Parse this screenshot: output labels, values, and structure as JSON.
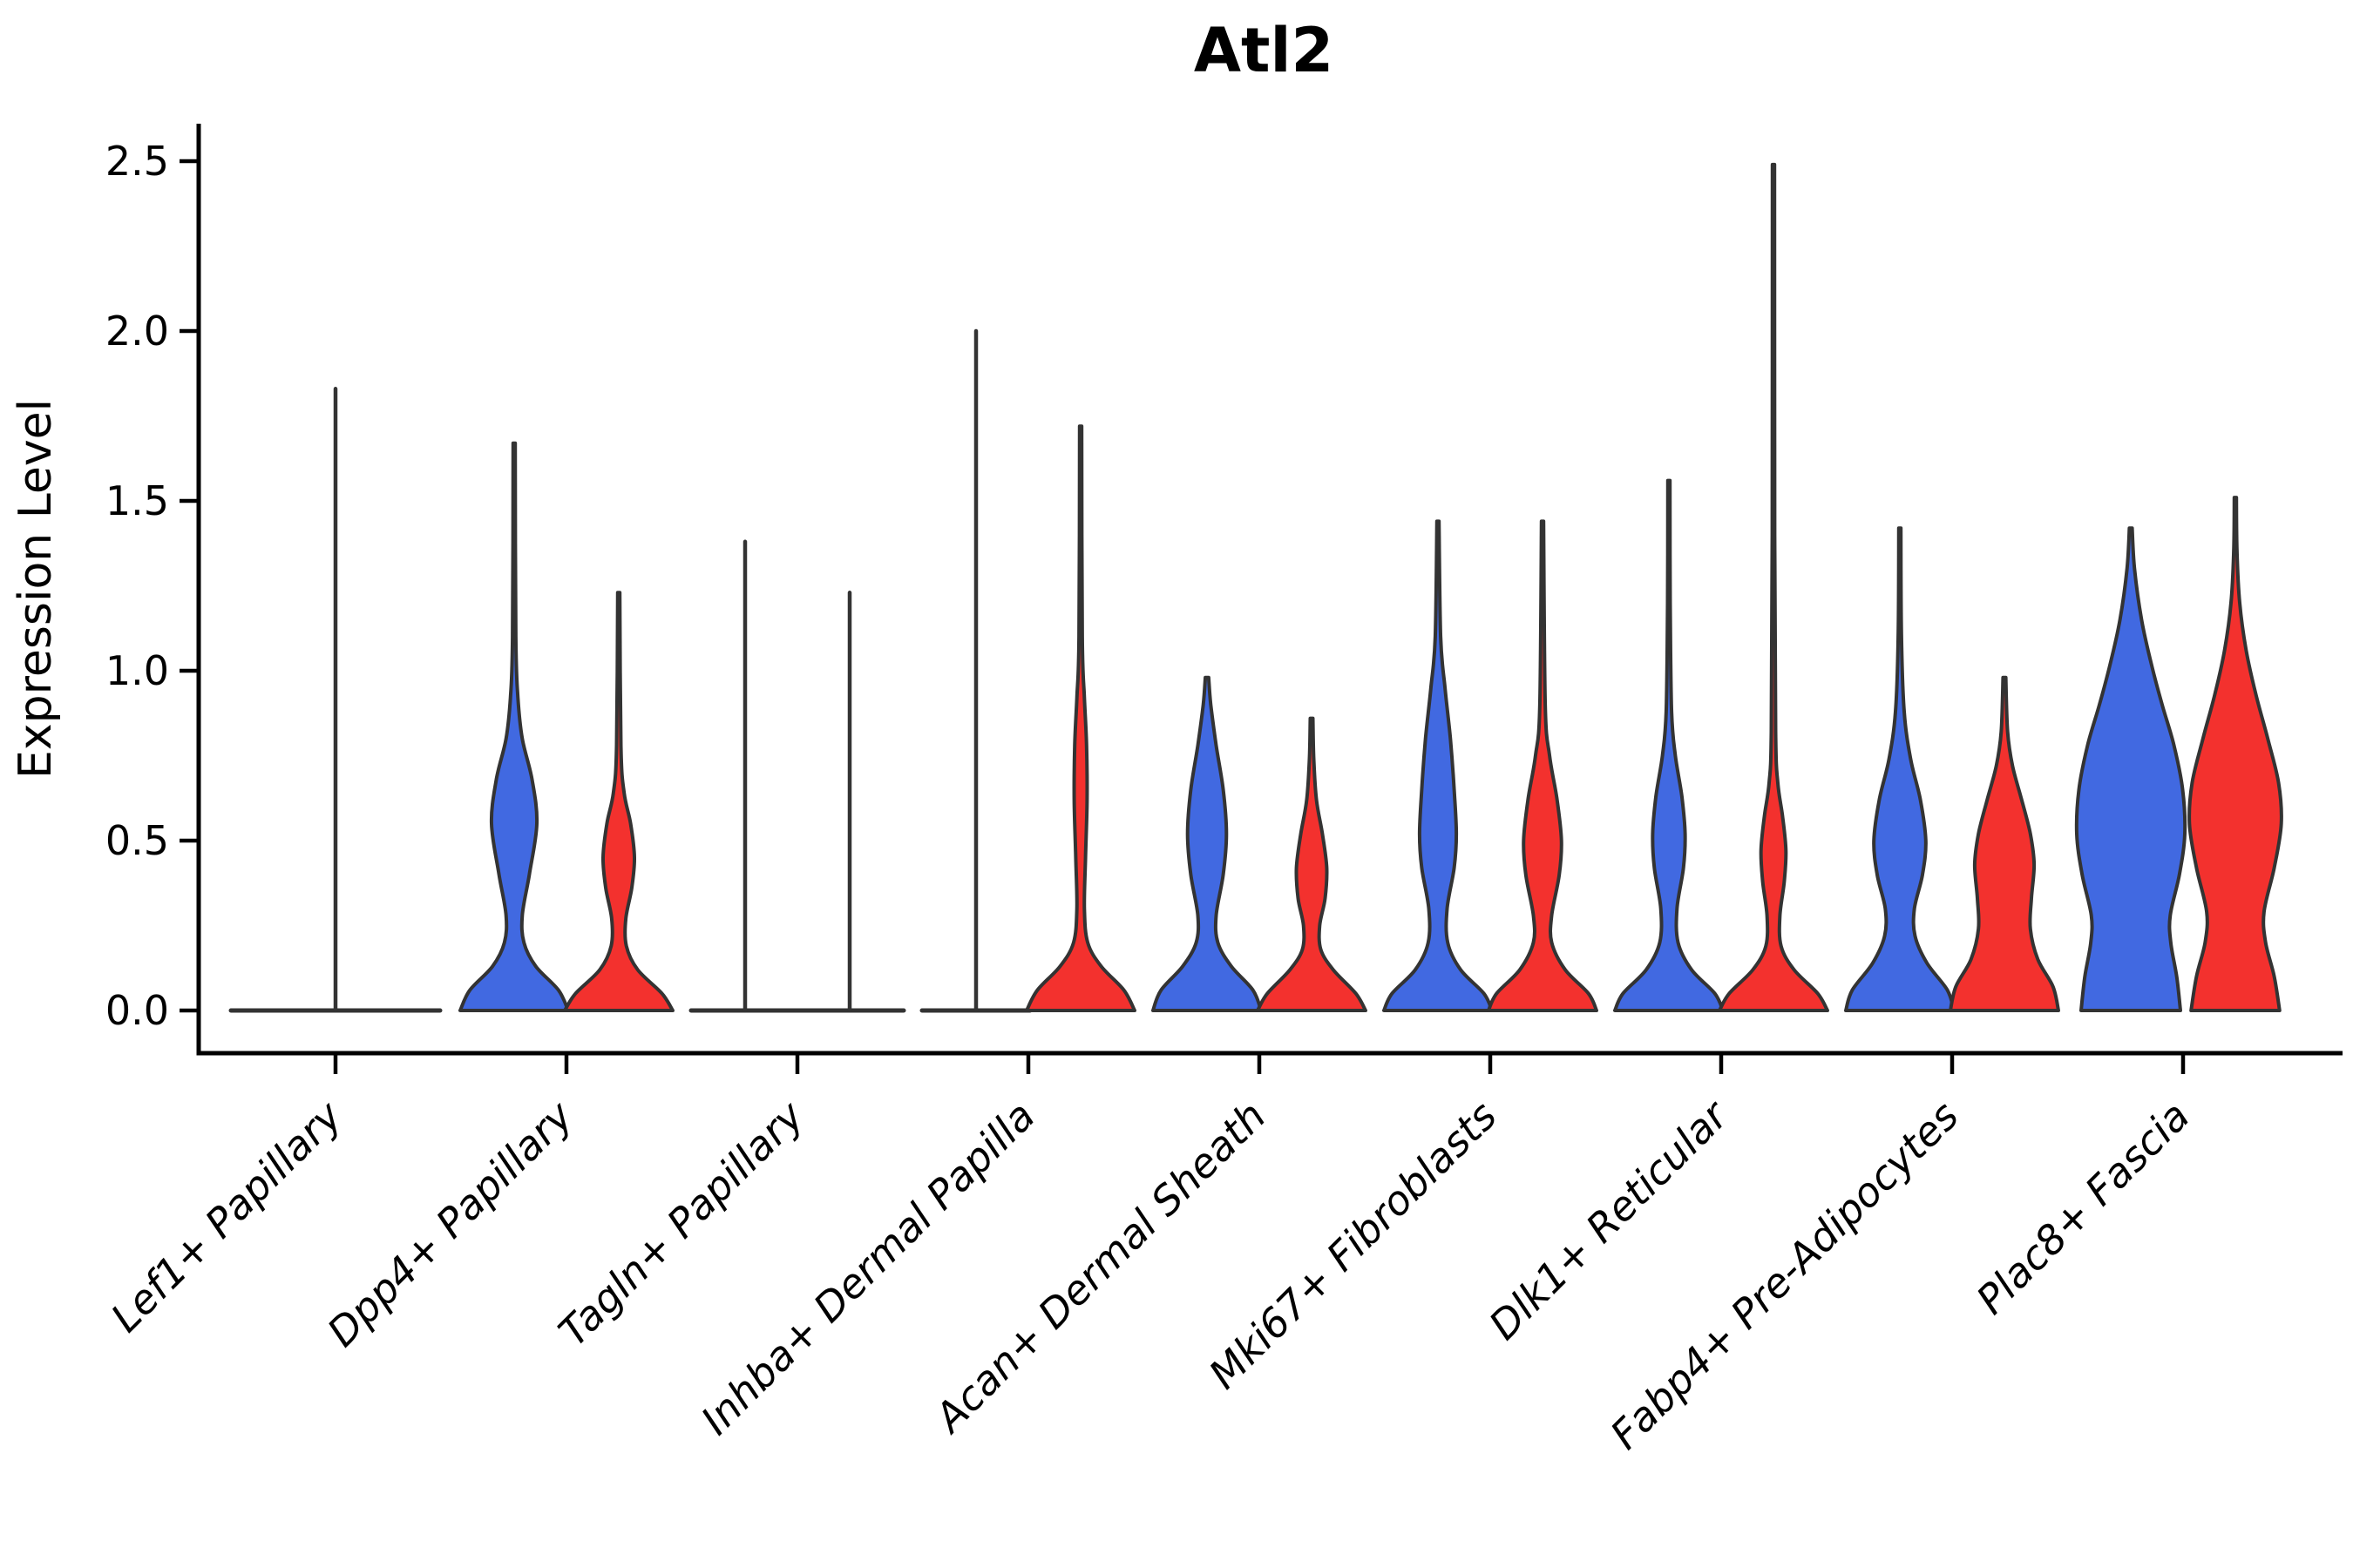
{
  "page": {
    "background": "#FFFFFF"
  },
  "chart_data": {
    "type": "violin",
    "title": "Atl2",
    "ylabel": "Expression Level",
    "xlabel": "",
    "ylim": [
      0,
      2.61
    ],
    "yticks": [
      0.0,
      0.5,
      1.0,
      1.5,
      2.0,
      2.5
    ],
    "ytick_labels": [
      "0.0",
      "0.5",
      "1.0",
      "1.5",
      "2.0",
      "2.5"
    ],
    "grid": false,
    "legend_position": "none",
    "x_label_rotation_deg": 45,
    "categories": [
      "Lef1+ Papillary",
      "Dpp4+ Papillary",
      "Tagln+ Papillary",
      "Inhba+ Dermal Papilla",
      "Acan+ Dermal Sheath",
      "Mki67+ Fibroblasts",
      "Dlk1+ Reticular",
      "Fabp4+ Pre-Adipocytes",
      "Plac8+ Fascia"
    ],
    "series": [
      {
        "name": "split-left-blue",
        "color": "#4169E1"
      },
      {
        "name": "split-right-red",
        "color": "#F3312E"
      }
    ],
    "outline_color": "#333333",
    "axis_color": "#000000",
    "violins": [
      {
        "category": 0,
        "series": null,
        "kind": "flat",
        "half_width": 120,
        "spike_top": 1.83
      },
      {
        "category": 1,
        "series": 0,
        "kind": "body",
        "spike_top": 1.67,
        "profile": [
          [
            0,
            1.0
          ],
          [
            0.06,
            0.82
          ],
          [
            0.13,
            0.4
          ],
          [
            0.2,
            0.18
          ],
          [
            0.28,
            0.15
          ],
          [
            0.4,
            0.28
          ],
          [
            0.55,
            0.42
          ],
          [
            0.68,
            0.33
          ],
          [
            0.8,
            0.15
          ],
          [
            0.92,
            0.07
          ],
          [
            1.1,
            0.03
          ],
          [
            1.67,
            0.02
          ]
        ]
      },
      {
        "category": 1,
        "series": 1,
        "kind": "body",
        "spike_top": 1.23,
        "profile": [
          [
            0,
            1.0
          ],
          [
            0.05,
            0.8
          ],
          [
            0.12,
            0.35
          ],
          [
            0.19,
            0.14
          ],
          [
            0.27,
            0.13
          ],
          [
            0.36,
            0.24
          ],
          [
            0.45,
            0.29
          ],
          [
            0.55,
            0.22
          ],
          [
            0.64,
            0.1
          ],
          [
            0.78,
            0.04
          ],
          [
            1.23,
            0.02
          ]
        ]
      },
      {
        "category": 2,
        "series": 0,
        "kind": "flat",
        "half_width": 62,
        "spike_top": 1.38
      },
      {
        "category": 2,
        "series": 1,
        "kind": "flat",
        "half_width": 62,
        "spike_top": 1.23
      },
      {
        "category": 3,
        "series": 0,
        "kind": "flat",
        "half_width": 62,
        "spike_top": 2.0
      },
      {
        "category": 3,
        "series": 1,
        "kind": "body",
        "spike_top": 1.72,
        "profile": [
          [
            0,
            1.0
          ],
          [
            0.06,
            0.8
          ],
          [
            0.13,
            0.38
          ],
          [
            0.2,
            0.13
          ],
          [
            0.3,
            0.07
          ],
          [
            0.45,
            0.09
          ],
          [
            0.62,
            0.12
          ],
          [
            0.78,
            0.11
          ],
          [
            0.92,
            0.07
          ],
          [
            1.1,
            0.03
          ],
          [
            1.72,
            0.02
          ]
        ]
      },
      {
        "category": 4,
        "series": 0,
        "kind": "body",
        "spike_top": 0.98,
        "profile": [
          [
            0,
            1.0
          ],
          [
            0.06,
            0.85
          ],
          [
            0.13,
            0.45
          ],
          [
            0.2,
            0.2
          ],
          [
            0.28,
            0.17
          ],
          [
            0.4,
            0.3
          ],
          [
            0.52,
            0.36
          ],
          [
            0.65,
            0.3
          ],
          [
            0.78,
            0.17
          ],
          [
            0.9,
            0.07
          ],
          [
            0.98,
            0.03
          ]
        ]
      },
      {
        "category": 4,
        "series": 1,
        "kind": "body",
        "spike_top": 0.86,
        "profile": [
          [
            0,
            1.0
          ],
          [
            0.05,
            0.82
          ],
          [
            0.12,
            0.4
          ],
          [
            0.18,
            0.17
          ],
          [
            0.25,
            0.15
          ],
          [
            0.33,
            0.25
          ],
          [
            0.42,
            0.28
          ],
          [
            0.52,
            0.2
          ],
          [
            0.62,
            0.09
          ],
          [
            0.74,
            0.04
          ],
          [
            0.86,
            0.025
          ]
        ]
      },
      {
        "category": 5,
        "series": 0,
        "kind": "body",
        "spike_top": 1.44,
        "profile": [
          [
            0,
            1.0
          ],
          [
            0.05,
            0.85
          ],
          [
            0.12,
            0.42
          ],
          [
            0.2,
            0.18
          ],
          [
            0.3,
            0.17
          ],
          [
            0.42,
            0.3
          ],
          [
            0.52,
            0.34
          ],
          [
            0.65,
            0.3
          ],
          [
            0.8,
            0.23
          ],
          [
            0.95,
            0.13
          ],
          [
            1.1,
            0.05
          ],
          [
            1.44,
            0.02
          ]
        ]
      },
      {
        "category": 5,
        "series": 1,
        "kind": "body",
        "spike_top": 1.44,
        "profile": [
          [
            0,
            1.0
          ],
          [
            0.05,
            0.85
          ],
          [
            0.12,
            0.42
          ],
          [
            0.2,
            0.17
          ],
          [
            0.28,
            0.17
          ],
          [
            0.4,
            0.31
          ],
          [
            0.5,
            0.35
          ],
          [
            0.62,
            0.27
          ],
          [
            0.75,
            0.13
          ],
          [
            0.9,
            0.05
          ],
          [
            1.44,
            0.02
          ]
        ]
      },
      {
        "category": 6,
        "series": 0,
        "kind": "body",
        "spike_top": 1.56,
        "profile": [
          [
            0,
            1.0
          ],
          [
            0.05,
            0.85
          ],
          [
            0.12,
            0.42
          ],
          [
            0.2,
            0.17
          ],
          [
            0.3,
            0.15
          ],
          [
            0.42,
            0.27
          ],
          [
            0.52,
            0.3
          ],
          [
            0.63,
            0.24
          ],
          [
            0.75,
            0.12
          ],
          [
            0.88,
            0.05
          ],
          [
            1.2,
            0.025
          ],
          [
            1.56,
            0.02
          ]
        ]
      },
      {
        "category": 6,
        "series": 1,
        "kind": "body",
        "spike_top": 2.49,
        "profile": [
          [
            0,
            1.0
          ],
          [
            0.05,
            0.82
          ],
          [
            0.12,
            0.38
          ],
          [
            0.19,
            0.14
          ],
          [
            0.28,
            0.12
          ],
          [
            0.38,
            0.2
          ],
          [
            0.47,
            0.23
          ],
          [
            0.57,
            0.17
          ],
          [
            0.67,
            0.08
          ],
          [
            0.82,
            0.04
          ],
          [
            1.4,
            0.022
          ],
          [
            2.49,
            0.02
          ]
        ]
      },
      {
        "category": 7,
        "series": 0,
        "kind": "body",
        "spike_top": 1.42,
        "profile": [
          [
            0,
            1.0
          ],
          [
            0.06,
            0.88
          ],
          [
            0.14,
            0.5
          ],
          [
            0.22,
            0.28
          ],
          [
            0.3,
            0.27
          ],
          [
            0.4,
            0.42
          ],
          [
            0.5,
            0.48
          ],
          [
            0.62,
            0.38
          ],
          [
            0.74,
            0.2
          ],
          [
            0.88,
            0.08
          ],
          [
            1.1,
            0.03
          ],
          [
            1.42,
            0.02
          ]
        ]
      },
      {
        "category": 7,
        "series": 1,
        "kind": "body",
        "spike_top": 0.98,
        "profile": [
          [
            0,
            1.0
          ],
          [
            0.07,
            0.9
          ],
          [
            0.15,
            0.62
          ],
          [
            0.24,
            0.48
          ],
          [
            0.33,
            0.5
          ],
          [
            0.43,
            0.55
          ],
          [
            0.52,
            0.48
          ],
          [
            0.62,
            0.32
          ],
          [
            0.72,
            0.15
          ],
          [
            0.82,
            0.06
          ],
          [
            0.98,
            0.025
          ]
        ]
      },
      {
        "category": 8,
        "series": 0,
        "kind": "body",
        "spike_top": 1.42,
        "profile": [
          [
            0,
            0.92
          ],
          [
            0.1,
            0.85
          ],
          [
            0.2,
            0.74
          ],
          [
            0.28,
            0.73
          ],
          [
            0.4,
            0.9
          ],
          [
            0.52,
            1.0
          ],
          [
            0.65,
            0.96
          ],
          [
            0.78,
            0.8
          ],
          [
            0.9,
            0.58
          ],
          [
            1.02,
            0.38
          ],
          [
            1.15,
            0.2
          ],
          [
            1.3,
            0.07
          ],
          [
            1.42,
            0.025
          ]
        ]
      },
      {
        "category": 8,
        "series": 1,
        "kind": "body",
        "spike_top": 1.51,
        "profile": [
          [
            0,
            0.82
          ],
          [
            0.1,
            0.72
          ],
          [
            0.2,
            0.56
          ],
          [
            0.29,
            0.53
          ],
          [
            0.42,
            0.72
          ],
          [
            0.55,
            0.85
          ],
          [
            0.67,
            0.8
          ],
          [
            0.8,
            0.6
          ],
          [
            0.93,
            0.38
          ],
          [
            1.06,
            0.2
          ],
          [
            1.2,
            0.08
          ],
          [
            1.35,
            0.03
          ],
          [
            1.51,
            0.02
          ]
        ]
      }
    ]
  }
}
